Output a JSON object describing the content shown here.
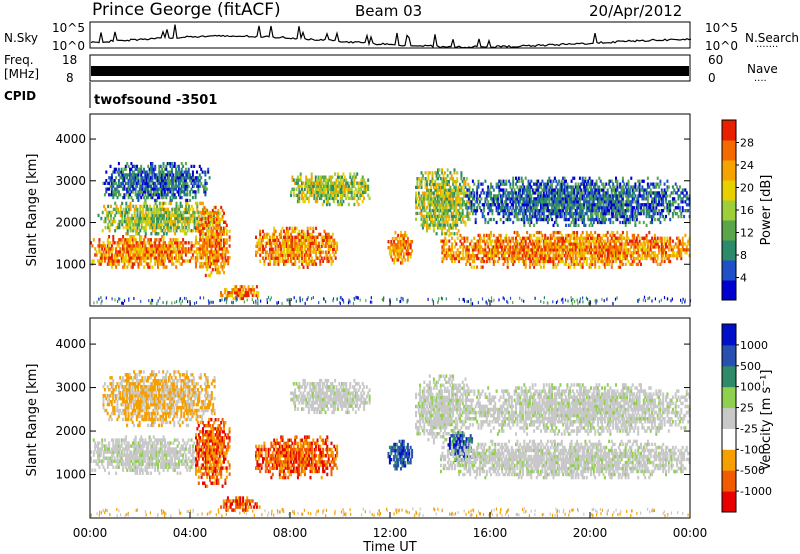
{
  "header": {
    "station": "Prince George (fitACF)",
    "beam": "Beam 03",
    "date": "20/Apr/2012"
  },
  "nsky_panel": {
    "left_label": "N.Sky",
    "left_ticks": [
      "10^5",
      "10^0"
    ],
    "right_ticks": [
      "10^5",
      "10^0"
    ],
    "right_label": "N.Search",
    "right_marker": "......."
  },
  "freq_panel": {
    "left_label_1": "Freq.",
    "left_label_2": "[MHz]",
    "left_ticks": [
      "18",
      "8"
    ],
    "right_ticks": [
      "60",
      "0"
    ],
    "right_label": "Nave",
    "right_marker": "...."
  },
  "cpid_panel": {
    "label": "CPID",
    "value": "twofsound  -3501"
  },
  "chart_data": [
    {
      "type": "heatmap",
      "title": "",
      "quantity": "Power",
      "ylabel": "Slant Range [km]",
      "ylim": [
        0,
        4600
      ],
      "yticks": [
        "1000",
        "2000",
        "3000",
        "4000"
      ],
      "xlim": [
        "00:00",
        "24:00"
      ],
      "colorbar": {
        "label": "Power [dB]",
        "range": [
          0,
          32
        ],
        "ticks": [
          "4",
          "8",
          "12",
          "16",
          "20",
          "24",
          "28"
        ],
        "colors": [
          "#0000d0",
          "#1f50c8",
          "#2a8a6a",
          "#5aa64b",
          "#9ccf3a",
          "#e8d000",
          "#f5a300",
          "#f46a00",
          "#e82000"
        ]
      },
      "features": [
        {
          "t0": 0.0,
          "t1": 4.3,
          "r0": 900,
          "r1": 1700,
          "level": "high"
        },
        {
          "t0": 0.3,
          "t1": 5.2,
          "r0": 1700,
          "r1": 2500,
          "level": "medium"
        },
        {
          "t0": 0.5,
          "t1": 4.8,
          "r0": 2500,
          "r1": 3450,
          "level": "low"
        },
        {
          "t0": 4.2,
          "t1": 5.6,
          "r0": 700,
          "r1": 2400,
          "level": "high"
        },
        {
          "t0": 5.2,
          "t1": 6.8,
          "r0": 150,
          "r1": 500,
          "level": "high"
        },
        {
          "t0": 6.6,
          "t1": 9.9,
          "r0": 900,
          "r1": 1900,
          "level": "high"
        },
        {
          "t0": 8.0,
          "t1": 11.2,
          "r0": 2400,
          "r1": 3200,
          "level": "medium"
        },
        {
          "t0": 11.9,
          "t1": 12.9,
          "r0": 1000,
          "r1": 1800,
          "level": "high"
        },
        {
          "t0": 13.0,
          "t1": 15.2,
          "r0": 1700,
          "r1": 3300,
          "level": "medium"
        },
        {
          "t0": 14.0,
          "t1": 24.0,
          "r0": 900,
          "r1": 1800,
          "level": "high"
        },
        {
          "t0": 15.0,
          "t1": 24.0,
          "r0": 1900,
          "r1": 3100,
          "level": "low"
        }
      ]
    },
    {
      "type": "heatmap",
      "title": "",
      "quantity": "Velocity",
      "ylabel": "Slant Range [km]",
      "ylim": [
        0,
        4600
      ],
      "yticks": [
        "1000",
        "2000",
        "3000",
        "4000"
      ],
      "xlim": [
        "00:00",
        "24:00"
      ],
      "xticks": [
        "00:00",
        "04:00",
        "08:00",
        "12:00",
        "16:00",
        "20:00",
        "00:00"
      ],
      "xlabel": "Time UT",
      "colorbar": {
        "label": "Velocity [m s⁻¹]",
        "range": [
          -1200,
          1200
        ],
        "ticks": [
          "1000",
          "500",
          "100",
          "25",
          "-25",
          "-100",
          "-500",
          "-1000"
        ],
        "colors": [
          "#e80000",
          "#f05a00",
          "#f5a000",
          "#ffffff",
          "#c8c8c8",
          "#90d050",
          "#2f8a6a",
          "#2850b0",
          "#0010c8"
        ]
      },
      "features": [
        {
          "t0": 0.0,
          "t1": 4.3,
          "r0": 1000,
          "r1": 1900,
          "level": "ground"
        },
        {
          "t0": 0.5,
          "t1": 5.0,
          "r0": 2100,
          "r1": 3400,
          "level": "away_slow"
        },
        {
          "t0": 4.2,
          "t1": 5.6,
          "r0": 700,
          "r1": 2300,
          "level": "away_fast"
        },
        {
          "t0": 5.2,
          "t1": 6.8,
          "r0": 150,
          "r1": 500,
          "level": "away_fast"
        },
        {
          "t0": 6.6,
          "t1": 9.9,
          "r0": 900,
          "r1": 1900,
          "level": "away_fast"
        },
        {
          "t0": 8.0,
          "t1": 11.2,
          "r0": 2400,
          "r1": 3200,
          "level": "ground"
        },
        {
          "t0": 11.9,
          "t1": 12.9,
          "r0": 1100,
          "r1": 1800,
          "level": "toward_fast"
        },
        {
          "t0": 13.0,
          "t1": 15.2,
          "r0": 1700,
          "r1": 3300,
          "level": "ground"
        },
        {
          "t0": 14.3,
          "t1": 15.3,
          "r0": 1300,
          "r1": 2000,
          "level": "toward_fast"
        },
        {
          "t0": 14.0,
          "t1": 24.0,
          "r0": 900,
          "r1": 1800,
          "level": "ground"
        },
        {
          "t0": 15.0,
          "t1": 24.0,
          "r0": 1900,
          "r1": 3100,
          "level": "ground"
        }
      ]
    }
  ]
}
